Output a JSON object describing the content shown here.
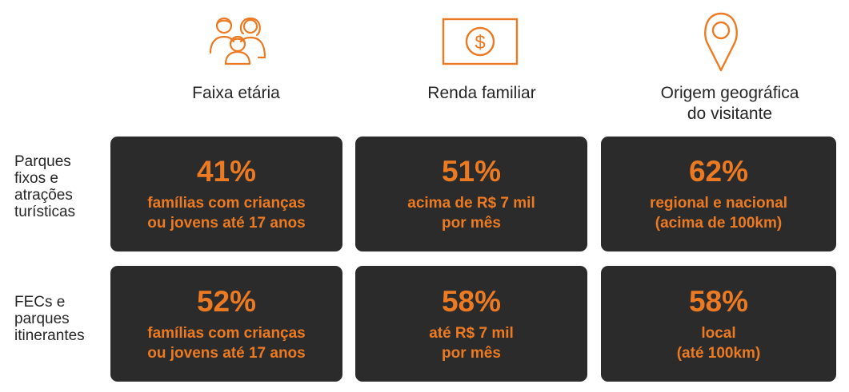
{
  "columns": [
    {
      "icon": "family-icon",
      "label": "Faixa etária"
    },
    {
      "icon": "money-bill-icon",
      "label": "Renda familiar"
    },
    {
      "icon": "location-pin-icon",
      "label": "Origem geográfica\ndo visitante"
    }
  ],
  "rows": [
    {
      "label": "Parques fixos e atrações turísticas"
    },
    {
      "label": "FECs e parques itinerantes"
    }
  ],
  "cells": [
    [
      {
        "value": "41%",
        "text": "famílias com crianças\nou jovens até 17 anos"
      },
      {
        "value": "51%",
        "text": "acima de R$ 7 mil\npor mês"
      },
      {
        "value": "62%",
        "text": "regional e nacional\n(acima de 100km)"
      }
    ],
    [
      {
        "value": "52%",
        "text": "famílias com crianças\nou jovens até 17 anos"
      },
      {
        "value": "58%",
        "text": "até R$ 7 mil\npor mês"
      },
      {
        "value": "58%",
        "text": "local\n(até 100km)"
      }
    ]
  ],
  "colors": {
    "accent": "#ec7a22",
    "card": "#2b2b2b",
    "text": "#262626"
  }
}
